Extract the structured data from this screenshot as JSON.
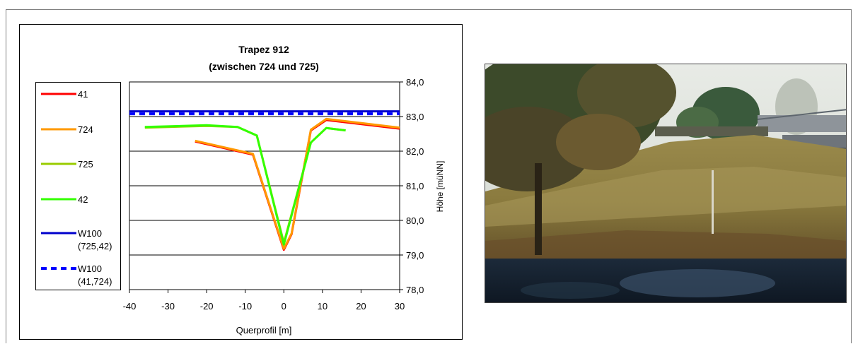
{
  "chart_data": {
    "type": "line",
    "title": [
      "Trapez 912",
      "(zwischen 724 und 725)"
    ],
    "xlabel": "Querprofil [m]",
    "ylabel": "Höhe [müNN]",
    "xlim": [
      -40,
      30
    ],
    "ylim": [
      78.0,
      84.0
    ],
    "xticks": [
      "-40",
      "-30",
      "-20",
      "-10",
      "0",
      "10",
      "20",
      "30"
    ],
    "yticks": [
      "78,0",
      "79,0",
      "80,0",
      "81,0",
      "82,0",
      "83,0",
      "84,0"
    ],
    "grid": "horizontal",
    "legend_position": "left",
    "series": [
      {
        "name": "41",
        "color": "#ff0000",
        "style": "solid",
        "x": [
          -23,
          -8,
          0,
          2,
          7,
          11,
          30
        ],
        "y": [
          82.28,
          81.9,
          79.15,
          79.6,
          82.6,
          82.9,
          82.65
        ]
      },
      {
        "name": "724",
        "color": "#ff9900",
        "style": "solid",
        "x": [
          -23,
          -8,
          0,
          2,
          7,
          11,
          30
        ],
        "y": [
          82.3,
          81.92,
          79.18,
          79.62,
          82.62,
          82.93,
          82.68
        ]
      },
      {
        "name": "725",
        "color": "#99cc00",
        "style": "solid",
        "x": [
          -36,
          -20,
          -12,
          -7,
          0,
          7,
          11,
          16
        ],
        "y": [
          82.68,
          82.73,
          82.7,
          82.45,
          79.35,
          82.25,
          82.67,
          82.6
        ]
      },
      {
        "name": "42",
        "color": "#33ff00",
        "style": "solid",
        "x": [
          -36,
          -20,
          -12,
          -7,
          0,
          7,
          11,
          16
        ],
        "y": [
          82.7,
          82.75,
          82.7,
          82.45,
          79.3,
          82.25,
          82.67,
          82.6
        ]
      },
      {
        "name": "W100\n(725,42)",
        "color": "#0000cc",
        "style": "solid",
        "x": [
          -40,
          30
        ],
        "y": [
          83.15,
          83.15
        ]
      },
      {
        "name": "W100\n(41,724)",
        "color": "#0000ff",
        "style": "dashed",
        "x": [
          -40,
          30
        ],
        "y": [
          83.08,
          83.08
        ]
      }
    ]
  },
  "photo": {
    "subject": "river-bank-photo"
  }
}
